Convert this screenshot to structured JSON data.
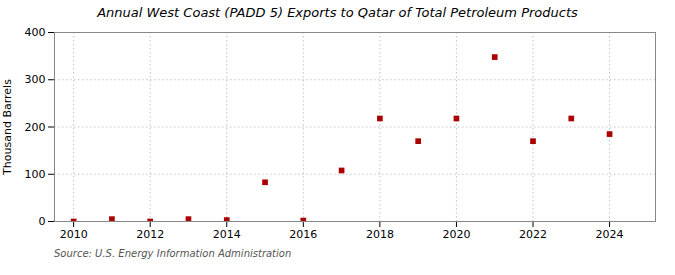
{
  "chart_data": {
    "type": "scatter",
    "title": "Annual West Coast (PADD 5) Exports to Qatar of Total Petroleum Products",
    "ylabel": "Thousand Barrels",
    "annotation": "Source: U.S. Energy Information Administration",
    "x": [
      2010,
      2011,
      2012,
      2013,
      2014,
      2015,
      2016,
      2017,
      2018,
      2019,
      2020,
      2021,
      2022,
      2023,
      2024
    ],
    "values": [
      0,
      5,
      0,
      5,
      3,
      83,
      2,
      108,
      218,
      170,
      218,
      348,
      170,
      218,
      185
    ],
    "color": "#aa0000",
    "marker": "square",
    "xlim": [
      2009.5,
      2025.2
    ],
    "ylim": [
      0,
      400
    ],
    "xticks": [
      2010,
      2012,
      2014,
      2016,
      2018,
      2020,
      2022,
      2024
    ],
    "yticks": [
      0,
      100,
      200,
      300,
      400
    ],
    "grid": true
  }
}
